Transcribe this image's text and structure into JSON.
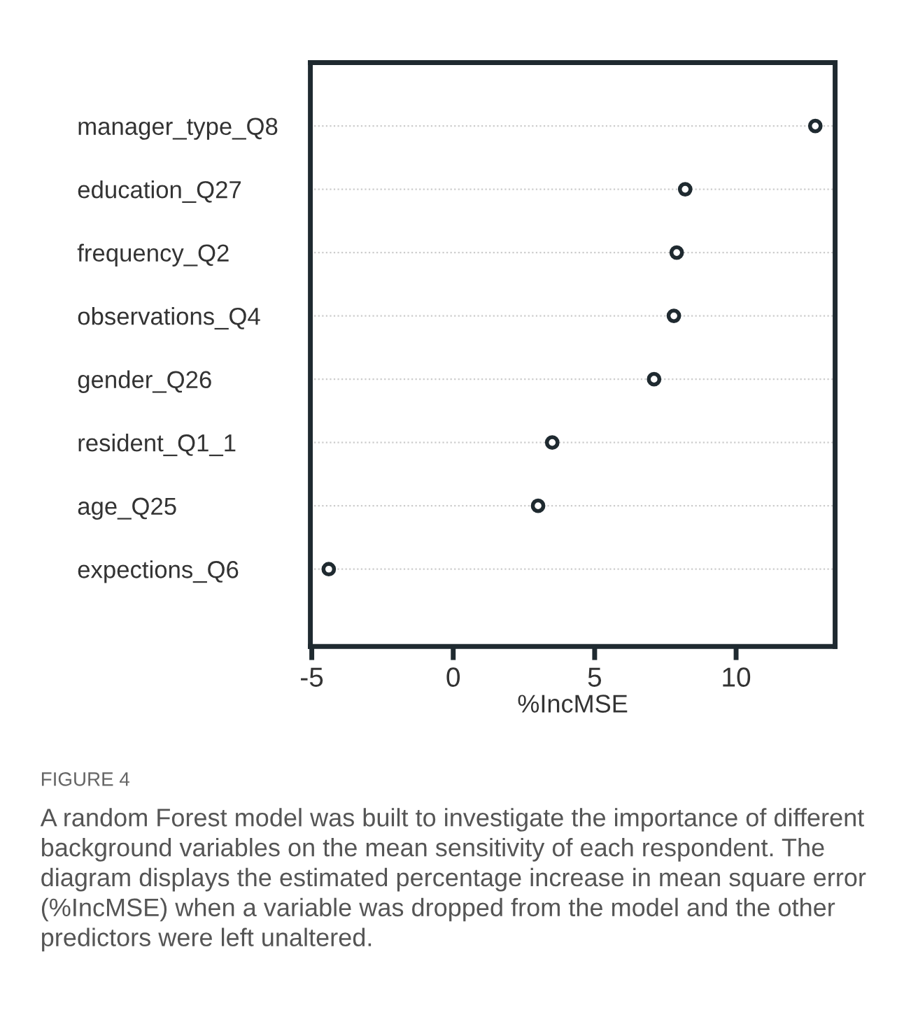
{
  "chart_data": {
    "type": "scatter",
    "xlabel": "%IncMSE",
    "categories": [
      "manager_type_Q8",
      "education_Q27",
      "frequency_Q2",
      "observations_Q4",
      "gender_Q26",
      "resident_Q1_1",
      "age_Q25",
      "expections_Q6"
    ],
    "values": [
      12.8,
      8.2,
      7.9,
      7.8,
      7.1,
      3.5,
      3.0,
      -4.4
    ],
    "color": "#1f2a30",
    "marker": "circle",
    "orientation": "horizontal",
    "xlim": [
      -5.05,
      13.5
    ],
    "xticks": [
      -5,
      0,
      5,
      10
    ],
    "grid": "y",
    "annotations": [
      "FIGURE 4",
      "A random Forest model was built to investigate the importance of different background variables on the mean sensitivity of each respondent. The diagram displays the estimated percentage increase in mean square error (%IncMSE) when a variable was dropped from the model and the other predictors were left unaltered."
    ]
  }
}
